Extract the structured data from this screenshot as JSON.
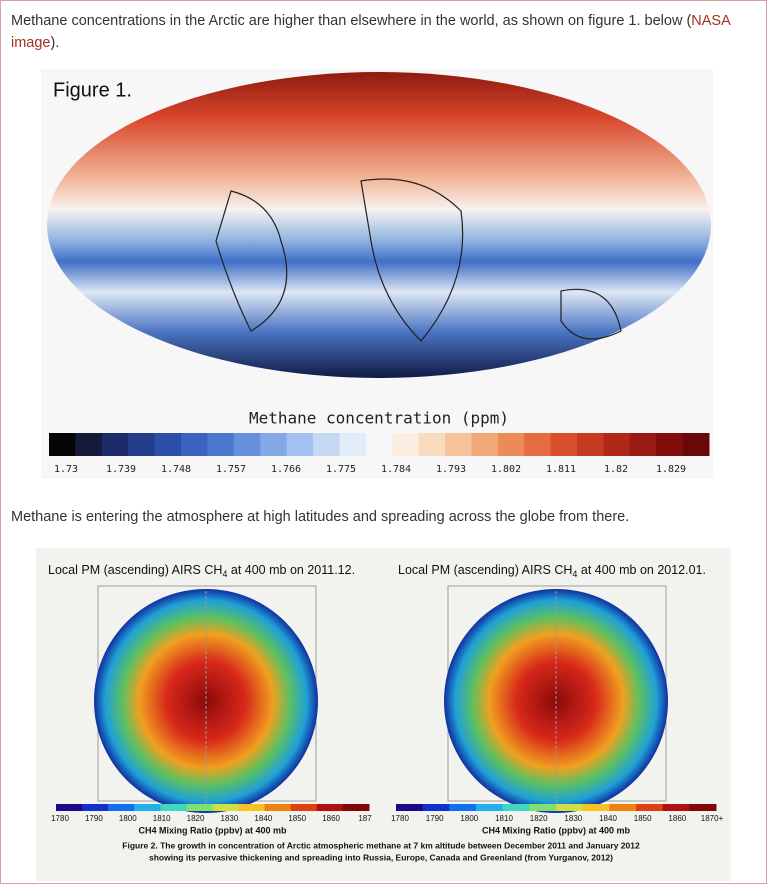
{
  "paragraphs": [
    {
      "text_before": "Methane concentrations in the Arctic are higher than elsewhere in the world, as shown on figure 1. below (",
      "link": "NASA image",
      "text_after": ")."
    },
    {
      "text": "Methane is entering the atmosphere at high latitudes and spreading across the globe from there."
    }
  ],
  "figure1": {
    "label": "Figure 1.",
    "colorbar_title": "Methane concentration (ppm)",
    "colorbar_ticks": [
      "1.73",
      "1.739",
      "1.748",
      "1.757",
      "1.766",
      "1.775",
      "1.784",
      "1.793",
      "1.802",
      "1.811",
      "1.82",
      "1.829"
    ]
  },
  "figure2": {
    "panels": [
      {
        "title_pre": "Local PM (ascending) AIRS CH",
        "title_sub": "4",
        "title_post": " at 400 mb on 2011.12.",
        "colorbar_ticks": [
          "1780",
          "1790",
          "1800",
          "1810",
          "1820",
          "1830",
          "1840",
          "1850",
          "1860",
          "187"
        ],
        "colorbar_title": "CH4 Mixing Ratio (ppbv) at 400 mb"
      },
      {
        "title_pre": "Local PM (ascending) AIRS CH",
        "title_sub": "4",
        "title_post": " at 400 mb on 2012.01.",
        "colorbar_ticks": [
          "1780",
          "1790",
          "1800",
          "1810",
          "1820",
          "1830",
          "1840",
          "1850",
          "1860",
          "1870+"
        ],
        "colorbar_title": "CH4 Mixing Ratio (ppbv) at 400 mb"
      }
    ],
    "caption": [
      "Figure 2. The growth in concentration of Arctic atmospheric methane at 7 km altitude between December 2011 and January 2012",
      "showing its pervasive thickening and spreading into Russia, Europe, Canada and Greenland (from Yurganov, 2012)"
    ]
  }
}
